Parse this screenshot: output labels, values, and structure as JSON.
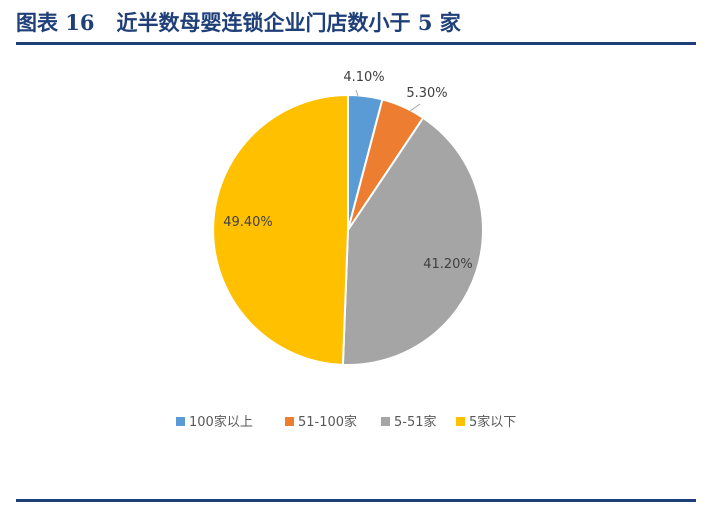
{
  "header": {
    "figure_label": "图表 16",
    "figure_title": "近半数母婴连锁企业门店数小于 5 家"
  },
  "chart_data": {
    "type": "pie",
    "categories": [
      "100家以上",
      "51-100家",
      "5-51家",
      "5家以下"
    ],
    "values": [
      4.1,
      5.3,
      41.2,
      49.4
    ],
    "labels": [
      "4.10%",
      "5.30%",
      "41.20%",
      "49.40%"
    ],
    "colors": [
      "#5b9bd5",
      "#ed7d31",
      "#a5a5a5",
      "#ffc000"
    ],
    "legend_position": "bottom"
  }
}
